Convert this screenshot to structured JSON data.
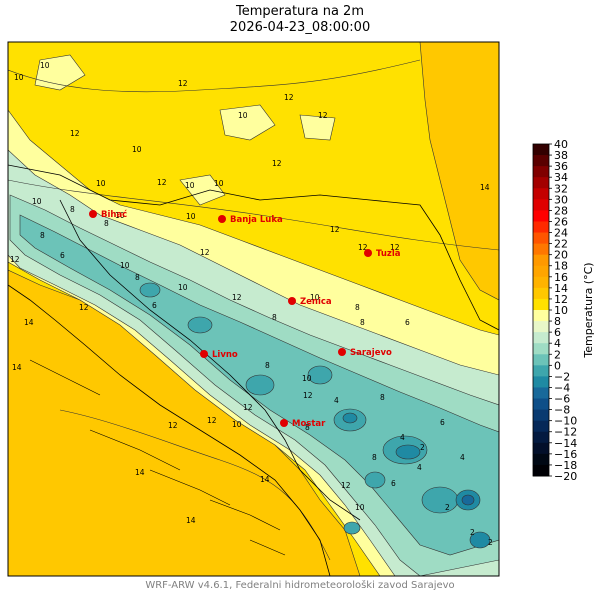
{
  "title": "Temperatura na 2m",
  "subtitle": "2026-04-23_08:00:00",
  "footer": "WRF-ARW v4.6.1, Federalni hidrometeorološki zavod Sarajevo",
  "colorbar": {
    "label": "Temperatura (°C)",
    "ticks": [
      "40",
      "38",
      "36",
      "34",
      "32",
      "30",
      "28",
      "26",
      "24",
      "22",
      "20",
      "18",
      "16",
      "14",
      "12",
      "10",
      "8",
      "6",
      "4",
      "2",
      "0",
      "−2",
      "−4",
      "−6",
      "−8",
      "−10",
      "−12",
      "−14",
      "−16",
      "−18",
      "−20"
    ],
    "colors": [
      "#330000",
      "#5a0000",
      "#800000",
      "#a30000",
      "#c40000",
      "#e00000",
      "#ff0000",
      "#ff2a00",
      "#ff5500",
      "#ff7700",
      "#ff9900",
      "#ffa500",
      "#ffb300",
      "#ffc800",
      "#ffe100",
      "#ffff9e",
      "#e8f7c8",
      "#c6ebcf",
      "#9fdcc4",
      "#6cc3b8",
      "#3ea6ac",
      "#1f8aa3",
      "#18699a",
      "#0e4f88",
      "#093a70",
      "#052858",
      "#031a40",
      "#020f2a",
      "#000814",
      "#000005"
    ]
  },
  "cities": [
    {
      "name": "Bihać"
    },
    {
      "name": "Banja Luka"
    },
    {
      "name": "Tuzla"
    },
    {
      "name": "Zenica"
    },
    {
      "name": "Livno"
    },
    {
      "name": "Sarajevo"
    },
    {
      "name": "Mostar"
    }
  ],
  "contour_labels": [
    "10",
    "10",
    "12",
    "12",
    "10",
    "12",
    "12",
    "10",
    "12",
    "10",
    "10",
    "12",
    "10",
    "10",
    "8",
    "8",
    "10",
    "10",
    "12",
    "12",
    "12",
    "12",
    "14",
    "14",
    "14",
    "12",
    "12",
    "10",
    "8",
    "8",
    "6",
    "6",
    "4",
    "4",
    "2",
    "2",
    "10",
    "8",
    "6",
    "8",
    "10",
    "12",
    "10",
    "8",
    "12",
    "12",
    "14",
    "14",
    "14",
    "12",
    "10",
    "8",
    "6",
    "4",
    "2",
    "2",
    "6",
    "4",
    "12",
    "10",
    "8",
    "12",
    "8",
    "8"
  ],
  "colors": {
    "yellow": "#ffe100",
    "orange": "#ffc800",
    "pale": "#ffff9e",
    "light_green": "#c6ebcf",
    "green": "#9fdcc4",
    "teal": "#6cc3b8",
    "blue_teal": "#3ea6ac",
    "blue": "#1f8aa3",
    "dark_blue": "#18699a",
    "city": "#e00000"
  }
}
